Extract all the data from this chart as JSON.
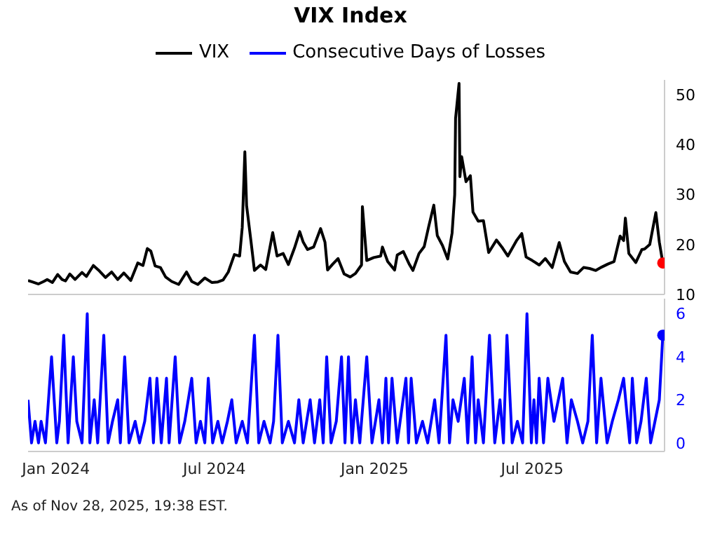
{
  "chart_data": [
    {
      "type": "line",
      "title": "VIX Index",
      "legend": "top",
      "tick_labels": "y",
      "xlim": [
        "2023-11-30",
        "2025-11-30"
      ],
      "ylim": [
        10,
        53
      ],
      "yticks": [
        10,
        20,
        30,
        40,
        50
      ],
      "series": [
        {
          "name": "VIX",
          "color": "#000000",
          "x": [
            "2023-11-30",
            "2023-12-05",
            "2023-12-12",
            "2023-12-18",
            "2023-12-22",
            "2023-12-28",
            "2024-01-03",
            "2024-01-08",
            "2024-01-12",
            "2024-01-17",
            "2024-01-23",
            "2024-01-31",
            "2024-02-05",
            "2024-02-13",
            "2024-02-20",
            "2024-02-27",
            "2024-03-05",
            "2024-03-12",
            "2024-03-19",
            "2024-03-27",
            "2024-04-04",
            "2024-04-10",
            "2024-04-15",
            "2024-04-19",
            "2024-04-24",
            "2024-04-30",
            "2024-05-06",
            "2024-05-13",
            "2024-05-21",
            "2024-05-30",
            "2024-06-05",
            "2024-06-12",
            "2024-06-20",
            "2024-06-28",
            "2024-07-05",
            "2024-07-11",
            "2024-07-17",
            "2024-07-24",
            "2024-07-30",
            "2024-08-02",
            "2024-08-05",
            "2024-08-07",
            "2024-08-12",
            "2024-08-16",
            "2024-08-23",
            "2024-08-29",
            "2024-09-06",
            "2024-09-11",
            "2024-09-18",
            "2024-09-24",
            "2024-10-01",
            "2024-10-07",
            "2024-10-11",
            "2024-10-16",
            "2024-10-23",
            "2024-10-31",
            "2024-11-05",
            "2024-11-08",
            "2024-11-14",
            "2024-11-20",
            "2024-11-27",
            "2024-12-04",
            "2024-12-10",
            "2024-12-17",
            "2024-12-18",
            "2024-12-23",
            "2024-12-31",
            "2025-01-08",
            "2025-01-10",
            "2025-01-16",
            "2025-01-24",
            "2025-01-27",
            "2025-02-03",
            "2025-02-10",
            "2025-02-14",
            "2025-02-21",
            "2025-02-27",
            "2025-03-04",
            "2025-03-10",
            "2025-03-14",
            "2025-03-20",
            "2025-03-26",
            "2025-03-31",
            "2025-04-03",
            "2025-04-04",
            "2025-04-08",
            "2025-04-09",
            "2025-04-11",
            "2025-04-16",
            "2025-04-21",
            "2025-04-24",
            "2025-04-30",
            "2025-05-06",
            "2025-05-12",
            "2025-05-21",
            "2025-05-28",
            "2025-06-03",
            "2025-06-13",
            "2025-06-19",
            "2025-06-24",
            "2025-07-01",
            "2025-07-09",
            "2025-07-16",
            "2025-07-24",
            "2025-08-01",
            "2025-08-07",
            "2025-08-14",
            "2025-08-22",
            "2025-08-29",
            "2025-09-05",
            "2025-09-12",
            "2025-09-19",
            "2025-09-26",
            "2025-10-03",
            "2025-10-10",
            "2025-10-14",
            "2025-10-16",
            "2025-10-20",
            "2025-10-28",
            "2025-11-04",
            "2025-11-07",
            "2025-11-13",
            "2025-11-20",
            "2025-11-24",
            "2025-11-28"
          ],
          "values": [
            12.8,
            12.5,
            12.1,
            12.6,
            13.0,
            12.4,
            14.0,
            13.0,
            12.7,
            14.1,
            13.0,
            14.4,
            13.6,
            15.8,
            14.7,
            13.4,
            14.5,
            13.0,
            14.3,
            12.8,
            16.3,
            15.8,
            19.2,
            18.7,
            15.7,
            15.4,
            13.5,
            12.6,
            12.0,
            14.5,
            12.6,
            12.0,
            13.3,
            12.4,
            12.5,
            12.9,
            14.5,
            18.0,
            17.7,
            23.4,
            38.6,
            27.8,
            20.7,
            14.8,
            15.9,
            15.0,
            22.4,
            17.7,
            18.2,
            16.0,
            19.3,
            22.6,
            20.5,
            19.0,
            19.5,
            23.2,
            20.5,
            14.9,
            16.1,
            17.2,
            14.1,
            13.5,
            14.2,
            15.9,
            27.6,
            16.8,
            17.4,
            17.7,
            19.5,
            16.6,
            14.9,
            17.9,
            18.6,
            16.0,
            14.8,
            18.2,
            19.6,
            23.5,
            27.9,
            21.8,
            19.8,
            17.1,
            22.3,
            30.0,
            45.3,
            52.3,
            33.6,
            37.6,
            32.6,
            33.8,
            26.5,
            24.7,
            24.8,
            18.4,
            20.9,
            19.3,
            17.7,
            20.8,
            22.2,
            17.5,
            16.8,
            15.9,
            17.2,
            15.4,
            20.4,
            16.6,
            14.5,
            14.2,
            15.4,
            15.2,
            14.8,
            15.5,
            16.1,
            16.6,
            21.7,
            20.8,
            25.3,
            18.2,
            16.4,
            19.0,
            19.1,
            20.0,
            26.4,
            20.5,
            16.3
          ]
        },
        {
          "type": "scatter",
          "color": "#ff0000",
          "x": [
            "2025-11-28"
          ],
          "values": [
            16.3
          ]
        }
      ]
    },
    {
      "type": "line",
      "legend": "top",
      "xlim": [
        "2023-11-30",
        "2025-11-30"
      ],
      "xticks": [
        {
          "value": "2024-01-01",
          "label": "Jan 2024"
        },
        {
          "value": "2024-07-01",
          "label": "Jul 2024"
        },
        {
          "value": "2025-01-01",
          "label": "Jan 2025"
        },
        {
          "value": "2025-07-01",
          "label": "Jul 2025"
        }
      ],
      "ylim": [
        -0.4,
        6.7
      ],
      "yticks": [
        0,
        2,
        4,
        6
      ],
      "annotations": [
        "As of Nov 28, 2025, 19:38 EST."
      ],
      "series": [
        {
          "name": "Consecutive Days of Losses",
          "color": "#0000ff",
          "x": [
            "2023-11-30",
            "2023-12-04",
            "2023-12-08",
            "2023-12-12",
            "2023-12-15",
            "2023-12-20",
            "2023-12-27",
            "2024-01-02",
            "2024-01-05",
            "2024-01-10",
            "2024-01-15",
            "2024-01-21",
            "2024-01-25",
            "2024-01-31",
            "2024-02-06",
            "2024-02-09",
            "2024-02-14",
            "2024-02-18",
            "2024-02-25",
            "2024-03-01",
            "2024-03-06",
            "2024-03-12",
            "2024-03-15",
            "2024-03-20",
            "2024-03-25",
            "2024-04-01",
            "2024-04-06",
            "2024-04-12",
            "2024-04-18",
            "2024-04-22",
            "2024-04-26",
            "2024-05-01",
            "2024-05-07",
            "2024-05-10",
            "2024-05-17",
            "2024-05-22",
            "2024-05-28",
            "2024-06-05",
            "2024-06-10",
            "2024-06-15",
            "2024-06-20",
            "2024-06-24",
            "2024-06-29",
            "2024-07-05",
            "2024-07-10",
            "2024-07-16",
            "2024-07-21",
            "2024-07-26",
            "2024-08-02",
            "2024-08-08",
            "2024-08-16",
            "2024-08-21",
            "2024-08-27",
            "2024-09-03",
            "2024-09-07",
            "2024-09-12",
            "2024-09-17",
            "2024-09-24",
            "2024-10-01",
            "2024-10-06",
            "2024-10-11",
            "2024-10-15",
            "2024-10-19",
            "2024-10-24",
            "2024-10-30",
            "2024-11-03",
            "2024-11-07",
            "2024-11-12",
            "2024-11-18",
            "2024-11-24",
            "2024-11-28",
            "2024-12-02",
            "2024-12-06",
            "2024-12-10",
            "2024-12-15",
            "2024-12-23",
            "2024-12-29",
            "2025-01-06",
            "2025-01-10",
            "2025-01-14",
            "2025-01-17",
            "2025-01-21",
            "2025-01-27",
            "2025-02-06",
            "2025-02-09",
            "2025-02-12",
            "2025-02-18",
            "2025-02-25",
            "2025-03-03",
            "2025-03-11",
            "2025-03-16",
            "2025-03-24",
            "2025-03-28",
            "2025-04-01",
            "2025-04-07",
            "2025-04-14",
            "2025-04-18",
            "2025-04-23",
            "2025-04-27",
            "2025-04-30",
            "2025-05-06",
            "2025-05-13",
            "2025-05-19",
            "2025-05-25",
            "2025-05-29",
            "2025-06-02",
            "2025-06-08",
            "2025-06-14",
            "2025-06-20",
            "2025-06-25",
            "2025-06-30",
            "2025-07-03",
            "2025-07-06",
            "2025-07-09",
            "2025-07-14",
            "2025-07-19",
            "2025-07-26",
            "2025-08-05",
            "2025-08-10",
            "2025-08-15",
            "2025-08-22",
            "2025-08-28",
            "2025-09-03",
            "2025-09-08",
            "2025-09-13",
            "2025-09-18",
            "2025-09-25",
            "2025-10-01",
            "2025-10-08",
            "2025-10-14",
            "2025-10-21",
            "2025-10-24",
            "2025-10-29",
            "2025-11-03",
            "2025-11-09",
            "2025-11-14",
            "2025-11-19",
            "2025-11-24",
            "2025-11-28"
          ],
          "values": [
            2,
            0,
            1,
            0,
            1,
            0,
            4,
            0,
            1,
            5,
            0,
            4,
            1,
            0,
            6,
            0,
            2,
            0,
            5,
            0,
            1,
            2,
            0,
            4,
            0,
            1,
            0,
            1,
            3,
            0,
            3,
            0,
            3,
            0,
            4,
            0,
            1,
            3,
            0,
            1,
            0,
            3,
            0,
            1,
            0,
            1,
            2,
            0,
            1,
            0,
            5,
            0,
            1,
            0,
            1,
            5,
            0,
            1,
            0,
            2,
            0,
            1,
            2,
            0,
            2,
            0,
            4,
            0,
            1,
            4,
            0,
            4,
            0,
            2,
            0,
            4,
            0,
            2,
            0,
            3,
            0,
            3,
            0,
            3,
            0,
            3,
            0,
            1,
            0,
            2,
            0,
            5,
            0,
            2,
            1,
            3,
            0,
            4,
            0,
            2,
            0,
            5,
            0,
            2,
            0,
            5,
            0,
            1,
            0,
            6,
            0,
            2,
            0,
            3,
            0,
            3,
            1,
            3,
            0,
            2,
            1,
            0,
            1,
            5,
            0,
            3,
            0,
            1,
            2,
            3,
            0,
            3,
            0,
            1,
            3,
            0,
            1,
            2,
            5
          ]
        },
        {
          "type": "scatter",
          "color": "#0000ff",
          "x": [
            "2025-11-28"
          ],
          "values": [
            5
          ]
        }
      ]
    }
  ]
}
